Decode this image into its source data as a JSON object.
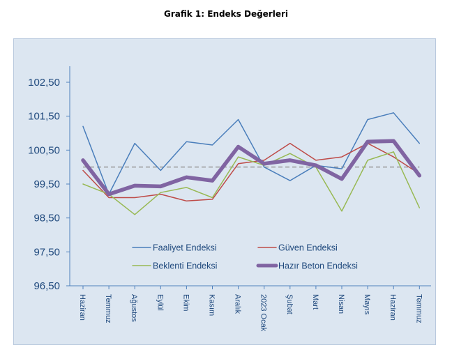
{
  "chart_data": {
    "type": "line",
    "title": "Grafik 1: Endeks Değerleri",
    "categories": [
      "Haziran",
      "Temmuz",
      "Ağustos",
      "Eylül",
      "Ekim",
      "Kasım",
      "Aralık",
      "2023 Ocak",
      "Şubat",
      "Mart",
      "Nisan",
      "Mayıs",
      "Haziran",
      "Temmuz"
    ],
    "y_ticks": [
      "96,50",
      "97,50",
      "98,50",
      "99,50",
      "100,50",
      "101,50",
      "102,50"
    ],
    "ylim": [
      96.5,
      102.5
    ],
    "ytick_values": [
      96.5,
      97.5,
      98.5,
      99.5,
      100.5,
      101.5,
      102.5
    ],
    "reference_line": 100,
    "grid": false,
    "legend_position": "bottom-inside",
    "series": [
      {
        "name": "Faaliyet Endeksi",
        "color": "#4a7ebb",
        "width": 1.5,
        "values": [
          101.2,
          99.2,
          100.7,
          99.9,
          100.75,
          100.65,
          101.4,
          100.0,
          99.6,
          100.05,
          99.95,
          101.4,
          101.6,
          100.7
        ]
      },
      {
        "name": "Güven Endeksi",
        "color": "#be4b48",
        "width": 1.5,
        "values": [
          99.9,
          99.1,
          99.1,
          99.2,
          99.0,
          99.05,
          100.1,
          100.2,
          100.7,
          100.2,
          100.3,
          100.7,
          100.3,
          99.8
        ]
      },
      {
        "name": "Beklenti Endeksi",
        "color": "#98b954",
        "width": 1.5,
        "values": [
          99.5,
          99.2,
          98.6,
          99.25,
          99.4,
          99.1,
          100.3,
          100.05,
          100.4,
          100.0,
          98.7,
          100.2,
          100.45,
          98.8
        ]
      },
      {
        "name": "Hazır Beton Endeksi",
        "color": "#8064a2",
        "width": 5.5,
        "values": [
          100.2,
          99.2,
          99.45,
          99.43,
          99.7,
          99.6,
          100.6,
          100.1,
          100.2,
          100.05,
          99.65,
          100.75,
          100.77,
          99.75
        ]
      }
    ]
  }
}
